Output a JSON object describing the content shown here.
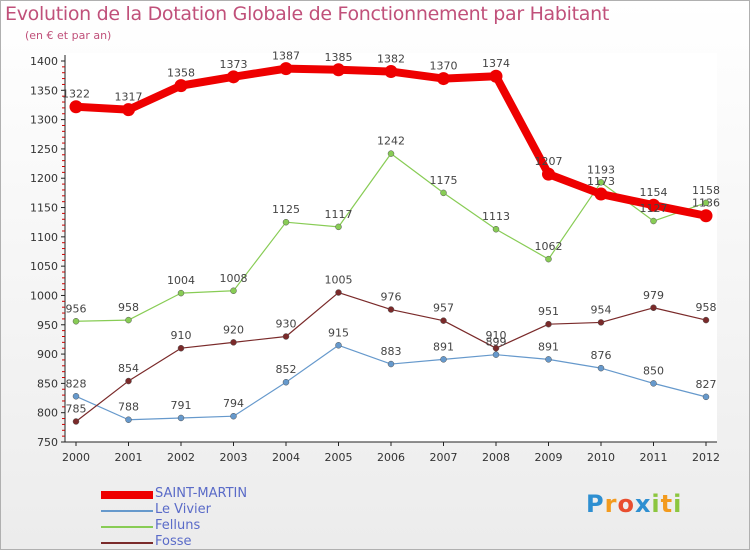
{
  "header": {
    "title": "Evolution de la Dotation Globale de Fonctionnement par Habitant",
    "subtitle": "(en € et par an)"
  },
  "logo": {
    "text": "Proxiti",
    "letters": [
      "P",
      "r",
      "o",
      "x",
      "i",
      "t",
      "i"
    ],
    "colors": [
      "#2e8fd1",
      "#f39b1e",
      "#e94e2f",
      "#2e8fd1",
      "#8cc63f",
      "#f39b1e",
      "#8cc63f"
    ]
  },
  "chart_data": {
    "type": "line",
    "title": "Evolution de la Dotation Globale de Fonctionnement par Habitant",
    "subtitle": "(en € et par an)",
    "x": [
      "2000",
      "2001",
      "2002",
      "2003",
      "2004",
      "2005",
      "2006",
      "2007",
      "2008",
      "2009",
      "2010",
      "2011",
      "2012"
    ],
    "ylim": [
      750,
      1400
    ],
    "yticks": [
      750,
      800,
      850,
      900,
      950,
      1000,
      1050,
      1100,
      1150,
      1200,
      1250,
      1300,
      1350,
      1400
    ],
    "grid": false,
    "legend_position": "bottom-left",
    "series": [
      {
        "name": "SAINT-MARTIN",
        "color": "#ee0000",
        "width": 8,
        "marker": 6.5,
        "labels": [
          "1322",
          "1317",
          "1358",
          "1373",
          "1387",
          "1385",
          "1382",
          "1370",
          "1374",
          "1207",
          "1173",
          "1154",
          "1136"
        ],
        "values": [
          1322,
          1317,
          1358,
          1373,
          1387,
          1385,
          1382,
          1370,
          1374,
          1207,
          1173,
          1154,
          1136
        ]
      },
      {
        "name": "Le Vivier",
        "color": "#6699cc",
        "width": 1.2,
        "marker": 3,
        "labels": [
          "828",
          "788",
          "791",
          "794",
          "852",
          "915",
          "883",
          "891",
          "899",
          "891",
          "876",
          "850",
          "827"
        ],
        "values": [
          828,
          788,
          791,
          794,
          852,
          915,
          883,
          891,
          899,
          891,
          876,
          850,
          827
        ]
      },
      {
        "name": "Felluns",
        "color": "#88cc55",
        "width": 1.2,
        "marker": 3,
        "labels": [
          "956",
          "958",
          "1004",
          "1008",
          "1125",
          "1117",
          "1242",
          "1175",
          "1113",
          "1062",
          "1193",
          "1127",
          "1158"
        ],
        "values": [
          956,
          958,
          1004,
          1008,
          1125,
          1117,
          1242,
          1175,
          1113,
          1062,
          1193,
          1127,
          1158
        ]
      },
      {
        "name": "Fosse",
        "color": "#7a2a2a",
        "width": 1.2,
        "marker": 3,
        "labels": [
          "785",
          "854",
          "910",
          "920",
          "930",
          "1005",
          "976",
          "957",
          "910",
          "951",
          "954",
          "979",
          "958"
        ],
        "values": [
          785,
          854,
          910,
          920,
          930,
          1005,
          976,
          957,
          910,
          951,
          954,
          979,
          958
        ]
      }
    ]
  }
}
